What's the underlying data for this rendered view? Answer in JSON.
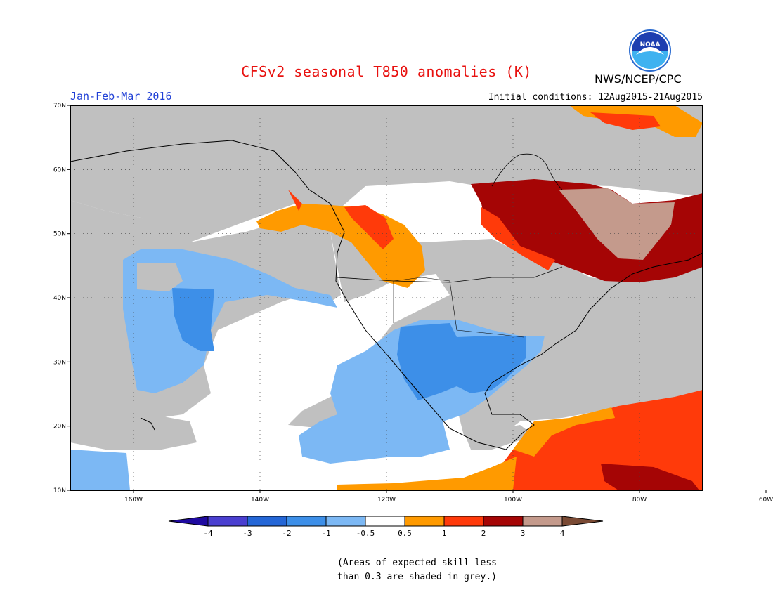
{
  "title": "CFSv2 seasonal T850 anomalies (K)",
  "period": "Jan-Feb-Mar 2016",
  "initial_conditions": "Initial conditions: 12Aug2015-21Aug2015",
  "agency": "NWS/NCEP/CPC",
  "logo_text": "NOAA",
  "note_line1": "(Areas of expected skill less",
  "note_line2": "than 0.3 are shaded in grey.)",
  "lat_labels": [
    "70N",
    "60N",
    "50N",
    "40N",
    "30N",
    "20N",
    "10N"
  ],
  "lon_labels": [
    "160W",
    "140W",
    "120W",
    "100W",
    "80W",
    "60W"
  ],
  "colorbar": {
    "labels": [
      "-4",
      "-3",
      "-2",
      "-1",
      "-0.5",
      "0.5",
      "1",
      "2",
      "3",
      "4"
    ],
    "colors": [
      "#1f0aa0",
      "#4a3fd0",
      "#2466d6",
      "#3d8fe8",
      "#7cb8f4",
      "#ffffff",
      "#ff9a00",
      "#ff3a0a",
      "#a50505",
      "#c49a8c",
      "#7a4a34"
    ]
  },
  "legend_colors": {
    "grey": "#c0c0c0",
    "cool_light": "#7cb8f4",
    "cool_mid": "#3d8fe8",
    "warm_orange": "#ff9a00",
    "warm_red": "#ff3a0a",
    "warm_dark": "#a50505",
    "warm_tan": "#c49a8c"
  }
}
